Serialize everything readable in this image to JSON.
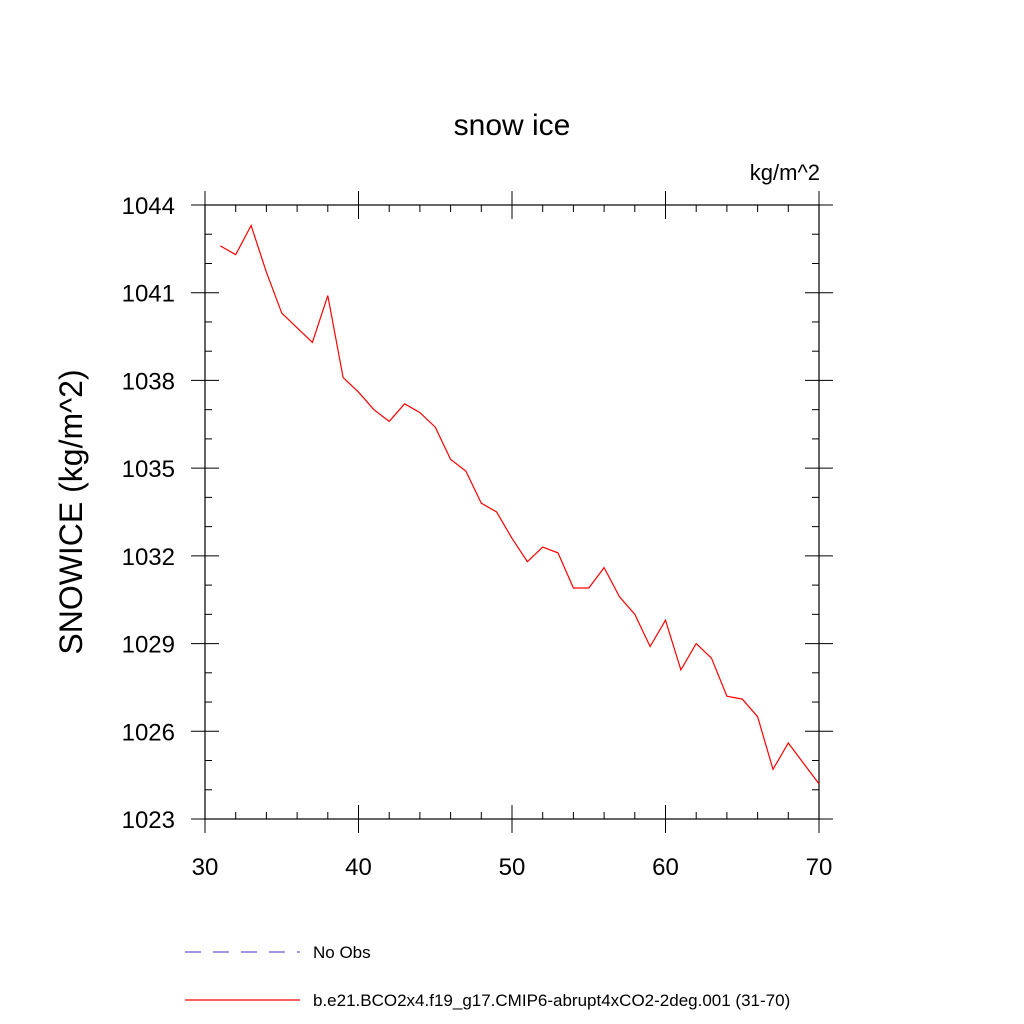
{
  "chart_data": {
    "type": "line",
    "title": "snow ice",
    "units_label": "kg/m^2",
    "ylabel": "SNOWICE  (kg/m^2)",
    "xlabel": "",
    "xlim": [
      30,
      70
    ],
    "ylim": [
      1023,
      1044
    ],
    "x_ticks": [
      30,
      40,
      50,
      60,
      70
    ],
    "y_ticks": [
      1023,
      1026,
      1029,
      1032,
      1035,
      1038,
      1041,
      1044
    ],
    "x_minor_step": 2,
    "y_minor_step": 1,
    "grid": false,
    "legend_placement": "bottom",
    "series": [
      {
        "name": "No Obs",
        "color": "#6a5acd",
        "dash": "dashed",
        "x": [],
        "y": []
      },
      {
        "name": "b.e21.BCO2x4.f19_g17.CMIP6-abrupt4xCO2-2deg.001 (31-70)",
        "color": "#ff0000",
        "dash": "solid",
        "x": [
          31,
          32,
          33,
          34,
          35,
          36,
          37,
          38,
          39,
          40,
          41,
          42,
          43,
          44,
          45,
          46,
          47,
          48,
          49,
          50,
          51,
          52,
          53,
          54,
          55,
          56,
          57,
          58,
          59,
          60,
          61,
          62,
          63,
          64,
          65,
          66,
          67,
          68,
          69,
          70
        ],
        "y": [
          1042.6,
          1042.3,
          1043.3,
          1041.7,
          1040.3,
          1039.8,
          1039.3,
          1040.9,
          1038.1,
          1037.6,
          1037.0,
          1036.6,
          1037.2,
          1036.9,
          1036.4,
          1035.3,
          1034.9,
          1033.8,
          1033.5,
          1032.6,
          1031.8,
          1032.3,
          1032.1,
          1030.9,
          1030.9,
          1031.6,
          1030.6,
          1030.0,
          1028.9,
          1029.8,
          1028.1,
          1029.0,
          1028.5,
          1027.2,
          1027.1,
          1026.5,
          1024.7,
          1025.6,
          1024.9,
          1024.2
        ]
      }
    ]
  }
}
